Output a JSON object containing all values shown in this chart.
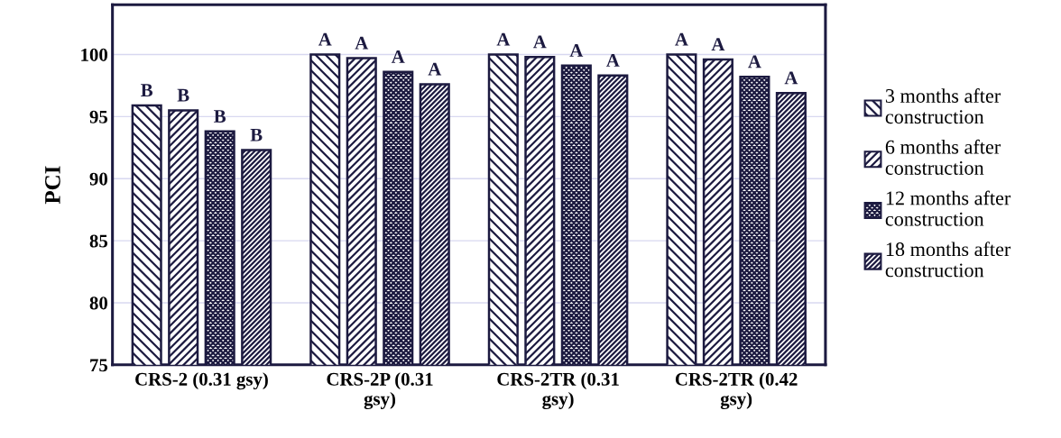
{
  "chart_data": {
    "type": "bar",
    "ylabel": "PCI",
    "categories": [
      "CRS-2 (0.31 gsy)",
      "CRS-2P (0.31\ngsy)",
      "CRS-2TR (0.31\ngsy)",
      "CRS-2TR (0.42\ngsy)"
    ],
    "series": [
      {
        "name": "3 months after\nconstruction",
        "color": "#1c1a40",
        "values": [
          95.9,
          100,
          100,
          100
        ],
        "value_labels": [
          "B",
          "A",
          "A",
          "A"
        ]
      },
      {
        "name": "6 months after\nconstruction",
        "color": "#1c1a40",
        "values": [
          95.5,
          99.7,
          99.8,
          99.6
        ],
        "value_labels": [
          "B",
          "A",
          "A",
          "A"
        ]
      },
      {
        "name": "12 months after\nconstruction",
        "color": "#1c1a40",
        "values": [
          93.8,
          98.6,
          99.1,
          98.2
        ],
        "value_labels": [
          "B",
          "A",
          "A",
          "A"
        ]
      },
      {
        "name": "18 months after\nconstruction",
        "color": "#1c1a40",
        "values": [
          92.3,
          97.6,
          98.3,
          96.9
        ],
        "value_labels": [
          "B",
          "A",
          "A",
          "A"
        ]
      }
    ],
    "ylim": [
      75,
      104
    ],
    "yticks": [
      75,
      80,
      85,
      90,
      95,
      100
    ],
    "grid": "y",
    "legend": "right"
  }
}
